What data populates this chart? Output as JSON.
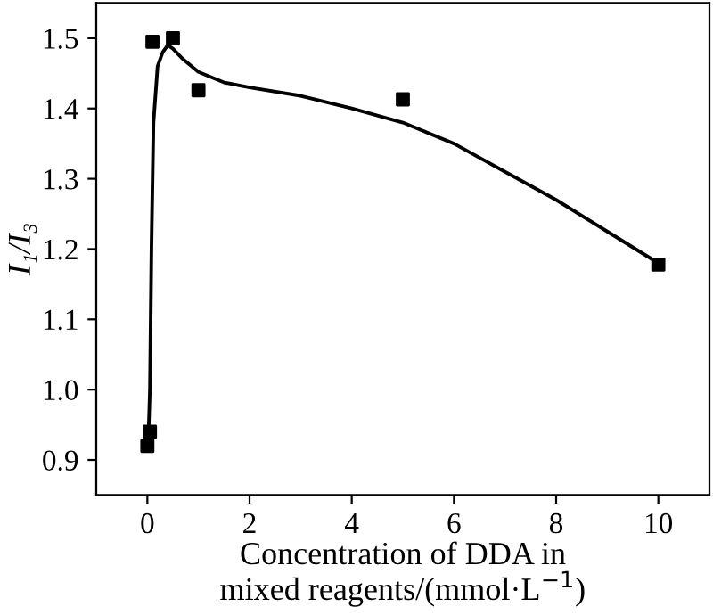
{
  "chart_data": {
    "type": "scatter",
    "xlabel": "Concentration of DDA in\nmixed reagents/(mmol·L$^{−1}$)",
    "ylabel": "I₁/I₃",
    "xlim": [
      -1,
      11
    ],
    "ylim": [
      0.85,
      1.55
    ],
    "xticks": [
      0,
      2,
      4,
      6,
      8,
      10
    ],
    "yticks": [
      {
        "value": 0.9,
        "label": "0.9"
      },
      {
        "value": 1.0,
        "label": "1.0"
      },
      {
        "value": 1.1,
        "label": "1.1"
      },
      {
        "value": 1.2,
        "label": "1.2"
      },
      {
        "value": 1.3,
        "label": "1.3"
      },
      {
        "value": 1.4,
        "label": "1.4"
      },
      {
        "value": 1.5,
        "label": "1.5"
      }
    ],
    "grid": false,
    "legend": false,
    "series": [
      {
        "marker": "square",
        "color": "#000000",
        "x": [
          0,
          0.05,
          0.1,
          0.5,
          1,
          5,
          10
        ],
        "values": [
          0.92,
          0.94,
          1.495,
          1.5,
          1.426,
          1.413,
          1.178
        ]
      },
      {
        "type": "line",
        "marker": "none",
        "line_style": "solid",
        "color": "#000000",
        "x": [
          0.02,
          0.05,
          0.08,
          0.12,
          0.2,
          0.3,
          0.4,
          0.5,
          0.7,
          1,
          1.5,
          2,
          3,
          4,
          5,
          6,
          7,
          8,
          9,
          10
        ],
        "values": [
          0.93,
          1.0,
          1.2,
          1.38,
          1.46,
          1.48,
          1.49,
          1.485,
          1.47,
          1.452,
          1.437,
          1.43,
          1.418,
          1.4,
          1.38,
          1.35,
          1.31,
          1.27,
          1.225,
          1.18
        ]
      }
    ]
  }
}
